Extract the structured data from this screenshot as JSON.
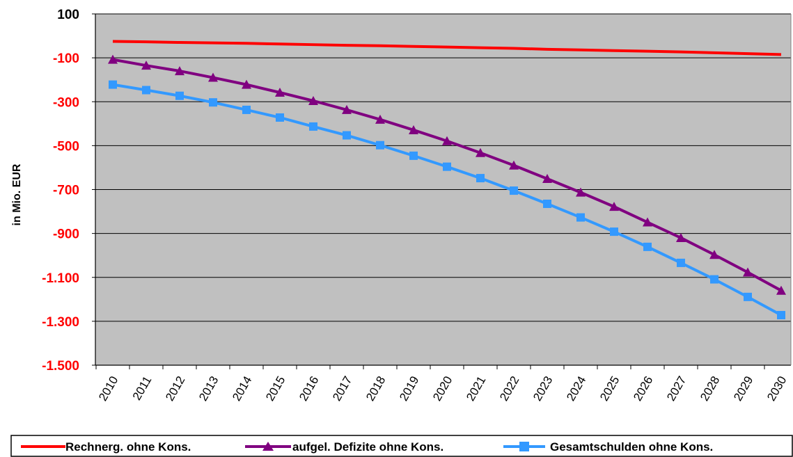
{
  "chart_data": {
    "type": "line",
    "title": "",
    "xlabel": "",
    "ylabel": "in Mio. EUR",
    "ylim": [
      -1500,
      100
    ],
    "y_ticks": [
      100,
      -100,
      -300,
      -500,
      -700,
      -900,
      -1100,
      -1300,
      -1500
    ],
    "y_tick_labels": [
      "100",
      "-100",
      "-300",
      "-500",
      "-700",
      "-900",
      "-1.100",
      "-1.300",
      "-1.500"
    ],
    "y_tick_label_colors": [
      "#000000",
      "#ff0000",
      "#ff0000",
      "#ff0000",
      "#ff0000",
      "#ff0000",
      "#ff0000",
      "#ff0000",
      "#ff0000"
    ],
    "grid": true,
    "plot_background": "#c0c0c0",
    "legend_position": "bottom",
    "x": [
      "2010",
      "2011",
      "2012",
      "2013",
      "2014",
      "2015",
      "2016",
      "2017",
      "2018",
      "2019",
      "2020",
      "2021",
      "2022",
      "2023",
      "2024",
      "2025",
      "2026",
      "2027",
      "2028",
      "2029",
      "2030"
    ],
    "series": [
      {
        "name": "Rechnerg. ohne Kons.",
        "color": "#ff0000",
        "marker": "none",
        "values": [
          -25,
          -27,
          -30,
          -32,
          -34,
          -37,
          -40,
          -43,
          -45,
          -48,
          -51,
          -54,
          -57,
          -61,
          -64,
          -67,
          -70,
          -73,
          -77,
          -81,
          -85
        ]
      },
      {
        "name": "aufgel. Defizite ohne Kons.",
        "color": "#800080",
        "marker": "triangle",
        "values": [
          -108,
          -135,
          -160,
          -190,
          -222,
          -258,
          -296,
          -337,
          -381,
          -429,
          -479,
          -533,
          -590,
          -651,
          -713,
          -778,
          -849,
          -920,
          -997,
          -1077,
          -1160
        ]
      },
      {
        "name": "Gesamtschulden ohne Kons.",
        "color": "#3399ff",
        "marker": "square",
        "values": [
          -222,
          -247,
          -273,
          -303,
          -337,
          -372,
          -413,
          -453,
          -498,
          -546,
          -596,
          -648,
          -705,
          -765,
          -827,
          -892,
          -961,
          -1034,
          -1109,
          -1189,
          -1272
        ]
      }
    ]
  }
}
